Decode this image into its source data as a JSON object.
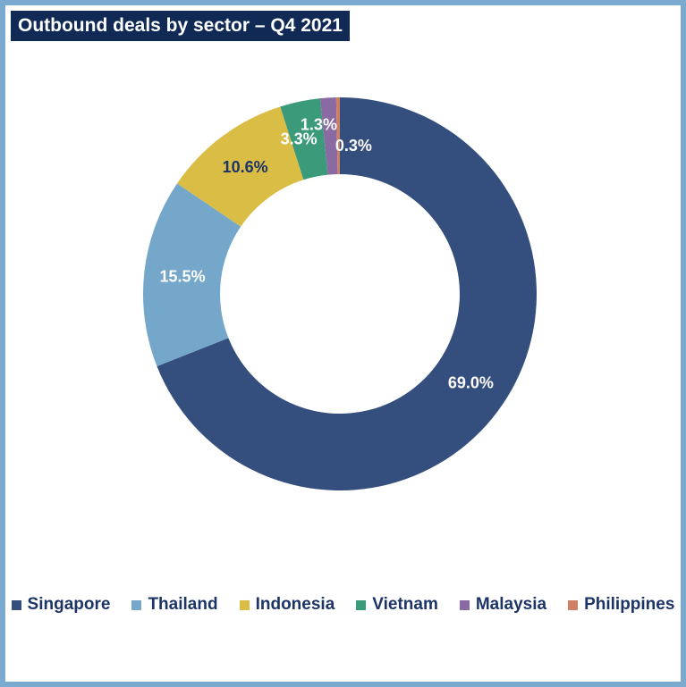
{
  "chart_data": {
    "type": "pie",
    "title": "Outbound deals by sector – Q4 2021",
    "donut": true,
    "legend_position": "bottom",
    "categories": [
      "Singapore",
      "Thailand",
      "Indonesia",
      "Vietnam",
      "Malaysia",
      "Philippines"
    ],
    "values": [
      69.0,
      15.5,
      10.6,
      3.3,
      1.3,
      0.3
    ],
    "labels": [
      "69.0%",
      "15.5%",
      "10.6%",
      "3.3%",
      "1.3%",
      "0.3%"
    ],
    "colors": [
      "#344e7e",
      "#74a7ca",
      "#dabd45",
      "#3a9a7a",
      "#8a6aa2",
      "#cf7f63"
    ],
    "label_colors": [
      "#ffffff",
      "#ffffff",
      "#1c3466",
      "#ffffff",
      "#ffffff",
      "#ffffff"
    ]
  }
}
